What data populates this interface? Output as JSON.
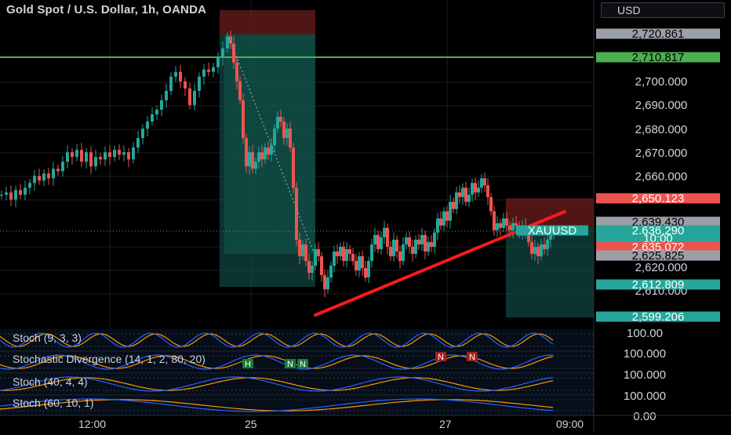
{
  "header": {
    "symbol_title": "Gold Spot / U.S. Dollar, 1h, OANDA",
    "currency": "USD"
  },
  "price_axis": {
    "ticks": [
      "2,700.000",
      "2,690.000",
      "2,680.000",
      "2,670.000",
      "2,660.000",
      "2,620.000",
      "2,610.000"
    ],
    "tags": [
      {
        "label": "2,720.861",
        "kind": "level-gray"
      },
      {
        "label": "2,710.817",
        "kind": "level-green"
      },
      {
        "label": "2,650.123",
        "kind": "stop-red"
      },
      {
        "label": "2,639.430",
        "kind": "level-gray"
      },
      {
        "label": "XAUUSD",
        "kind": "symbol-teal"
      },
      {
        "label": "2,636.290",
        "kind": "price-teal"
      },
      {
        "label": "10:00",
        "kind": "countdown-teal"
      },
      {
        "label": "2,635.072",
        "kind": "stop-red"
      },
      {
        "label": "2,625.825",
        "kind": "level-gray"
      },
      {
        "label": "2,612.809",
        "kind": "target-teal"
      },
      {
        "label": "2,599.206",
        "kind": "target-teal"
      }
    ]
  },
  "indicators": [
    {
      "label": "Stoch (9, 3, 3)"
    },
    {
      "label": "Stochastic Divergence (14, 1, 2, 80, 20)",
      "markers": [
        "H",
        "N",
        "N",
        "N",
        "N"
      ]
    },
    {
      "label": "Stoch (40, 4, 4)"
    },
    {
      "label": "Stoch (60, 10, 1)"
    }
  ],
  "indicator_axis": [
    "100.00",
    "100.000",
    "100.000",
    "100.000",
    "0.00"
  ],
  "time_axis": [
    "12:00",
    "25",
    "27",
    "09:00"
  ],
  "colors": {
    "up": "#26a69a",
    "down": "#ef5350",
    "level_green": "#4caf50",
    "trendline": "#ff1a1a",
    "axis_bg": "#000000",
    "grid": "#1b1e26"
  }
}
